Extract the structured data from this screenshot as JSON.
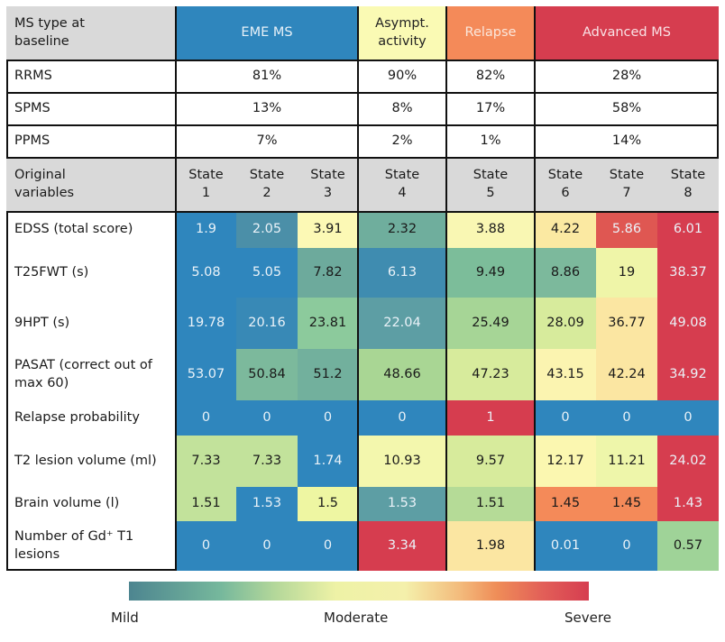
{
  "chart_data": {
    "type": "heatmap",
    "title": "",
    "group_header_label": "MS type at baseline",
    "groups": [
      {
        "name": "EME MS",
        "color": "#2f86bd",
        "text_color": "#e8f1f8",
        "states": [
          "State 1",
          "State 2",
          "State 3"
        ]
      },
      {
        "name": "Asympt. activity",
        "color": "#fafab4",
        "text_color": "#222222",
        "states": [
          "State 4"
        ]
      },
      {
        "name": "Relapse",
        "color": "#f48a59",
        "text_color": "#fbe7dc",
        "states": [
          "State 5"
        ]
      },
      {
        "name": "Advanced MS",
        "color": "#d63d4f",
        "text_color": "#f9e2e5",
        "states": [
          "State 6",
          "State 7",
          "State 8"
        ]
      }
    ],
    "ms_type_rows": [
      {
        "label": "RRMS",
        "values": [
          "81%",
          "90%",
          "82%",
          "28%"
        ]
      },
      {
        "label": "SPMS",
        "values": [
          "13%",
          "8%",
          "17%",
          "58%"
        ]
      },
      {
        "label": "PPMS",
        "values": [
          "7%",
          "2%",
          "1%",
          "14%"
        ]
      }
    ],
    "variables_header_label": "Original variables",
    "state_headers": [
      {
        "line1": "State",
        "line2": "1"
      },
      {
        "line1": "State",
        "line2": "2"
      },
      {
        "line1": "State",
        "line2": "3"
      },
      {
        "line1": "State",
        "line2": "4"
      },
      {
        "line1": "State",
        "line2": "5"
      },
      {
        "line1": "State",
        "line2": "6"
      },
      {
        "line1": "State",
        "line2": "7"
      },
      {
        "line1": "State",
        "line2": "8"
      }
    ],
    "variable_rows": [
      {
        "label": "EDSS (total score)",
        "values": [
          "1.9",
          "2.05",
          "3.91",
          "2.32",
          "3.88",
          "4.22",
          "5.86",
          "6.01"
        ],
        "colors": [
          "#2f86bd",
          "#4b8fa8",
          "#fcf9b5",
          "#6fae9d",
          "#f9f7b3",
          "#fbe9a2",
          "#df5752",
          "#d63d4f"
        ]
      },
      {
        "label": "T25FWT (s)",
        "values": [
          "5.08",
          "5.05",
          "7.82",
          "6.13",
          "9.49",
          "8.86",
          "19",
          "38.37"
        ],
        "colors": [
          "#2f86bd",
          "#2f86bd",
          "#6daa9c",
          "#3f8cb0",
          "#7cbd9a",
          "#7cb99c",
          "#eff5a8",
          "#d63d4f"
        ]
      },
      {
        "label": "9HPT (s)",
        "values": [
          "19.78",
          "20.16",
          "23.81",
          "22.04",
          "25.49",
          "28.09",
          "36.77",
          "49.08"
        ],
        "colors": [
          "#2f86bd",
          "#3889b6",
          "#8cca9c",
          "#5d9ea4",
          "#a6d596",
          "#d7eb9c",
          "#fbe6a2",
          "#d63d4f"
        ]
      },
      {
        "label": "PASAT (correct out of max 60)",
        "values": [
          "53.07",
          "50.84",
          "51.2",
          "48.66",
          "47.23",
          "43.15",
          "42.24",
          "34.92"
        ],
        "colors": [
          "#2f86bd",
          "#7cb99c",
          "#72b09d",
          "#a9d694",
          "#d7eb9c",
          "#fbf4b0",
          "#fbe6a2",
          "#d63d4f"
        ]
      },
      {
        "label": "Relapse probability",
        "values": [
          "0",
          "0",
          "0",
          "0",
          "1",
          "0",
          "0",
          "0"
        ],
        "colors": [
          "#2f86bd",
          "#2f86bd",
          "#2f86bd",
          "#2f86bd",
          "#d63d4f",
          "#2f86bd",
          "#2f86bd",
          "#2f86bd"
        ]
      },
      {
        "label": "T2 lesion volume (ml)",
        "values": [
          "7.33",
          "7.33",
          "1.74",
          "10.93",
          "9.57",
          "12.17",
          "11.21",
          "24.02"
        ],
        "colors": [
          "#c2e29b",
          "#c2e29b",
          "#2f86bd",
          "#f3f7ad",
          "#d7eb9c",
          "#fbf7b0",
          "#eef6aa",
          "#d63d4f"
        ]
      },
      {
        "label": "Brain volume (l)",
        "values": [
          "1.51",
          "1.53",
          "1.5",
          "1.53",
          "1.51",
          "1.45",
          "1.45",
          "1.43"
        ],
        "colors": [
          "#c2e29b",
          "#2f86bd",
          "#eef6a2",
          "#5d9ea4",
          "#b5db97",
          "#f48a59",
          "#f48a59",
          "#d63d4f"
        ]
      },
      {
        "label": "Number of Gd⁺ T1 lesions",
        "values": [
          "0",
          "0",
          "0",
          "3.34",
          "1.98",
          "0.01",
          "0",
          "0.57"
        ],
        "colors": [
          "#2f86bd",
          "#2f86bd",
          "#2f86bd",
          "#d63d4f",
          "#fbe6a2",
          "#2f86bd",
          "#2f86bd",
          "#9fd398"
        ]
      }
    ],
    "legend": {
      "type": "color-gradient",
      "labels": [
        "Mild",
        "Moderate",
        "Severe"
      ],
      "stops": [
        "#4d8590",
        "#76b89c",
        "#eef2a6",
        "#f4f0ab",
        "#ef8d58",
        "#d63d50"
      ],
      "placement": "bottom"
    }
  }
}
